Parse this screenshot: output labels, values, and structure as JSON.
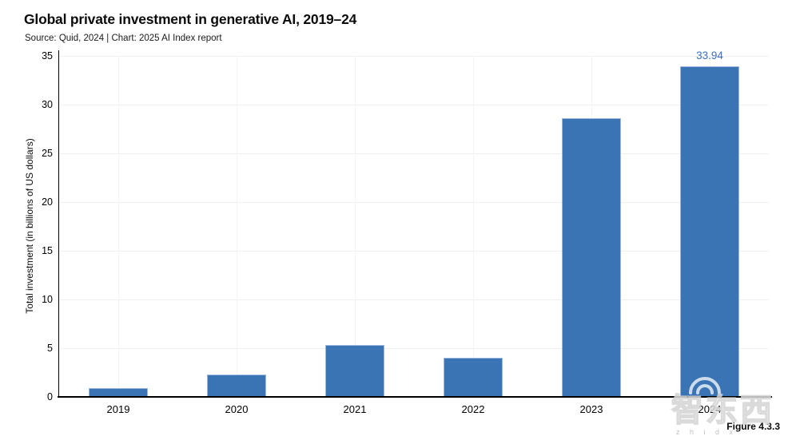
{
  "header": {
    "title": "Global private investment in generative AI, 2019–24",
    "subtitle": "Source: Quid, 2024 | Chart: 2025 AI Index report"
  },
  "chart_data": {
    "type": "bar",
    "categories": [
      "2019",
      "2020",
      "2021",
      "2022",
      "2023",
      "2024"
    ],
    "values": [
      0.9,
      2.3,
      5.3,
      4.0,
      28.6,
      33.94
    ],
    "title": "Global private investment in generative AI, 2019–24",
    "xlabel": "",
    "ylabel": "Total investment (in billions of US dollars)",
    "ylim": [
      0,
      35
    ],
    "yticks": [
      0,
      5,
      10,
      15,
      20,
      25,
      30,
      35
    ],
    "grid": true,
    "legend": "none",
    "bar_color": "#3b74b5",
    "annotation_color": "#3b6fc0",
    "annotations": [
      {
        "category": "2024",
        "text": "33.94"
      }
    ]
  },
  "footer": {
    "figure_label": "Figure 4.3.3"
  },
  "watermark": {
    "text": "智东西",
    "subtext": "z h i d x"
  }
}
